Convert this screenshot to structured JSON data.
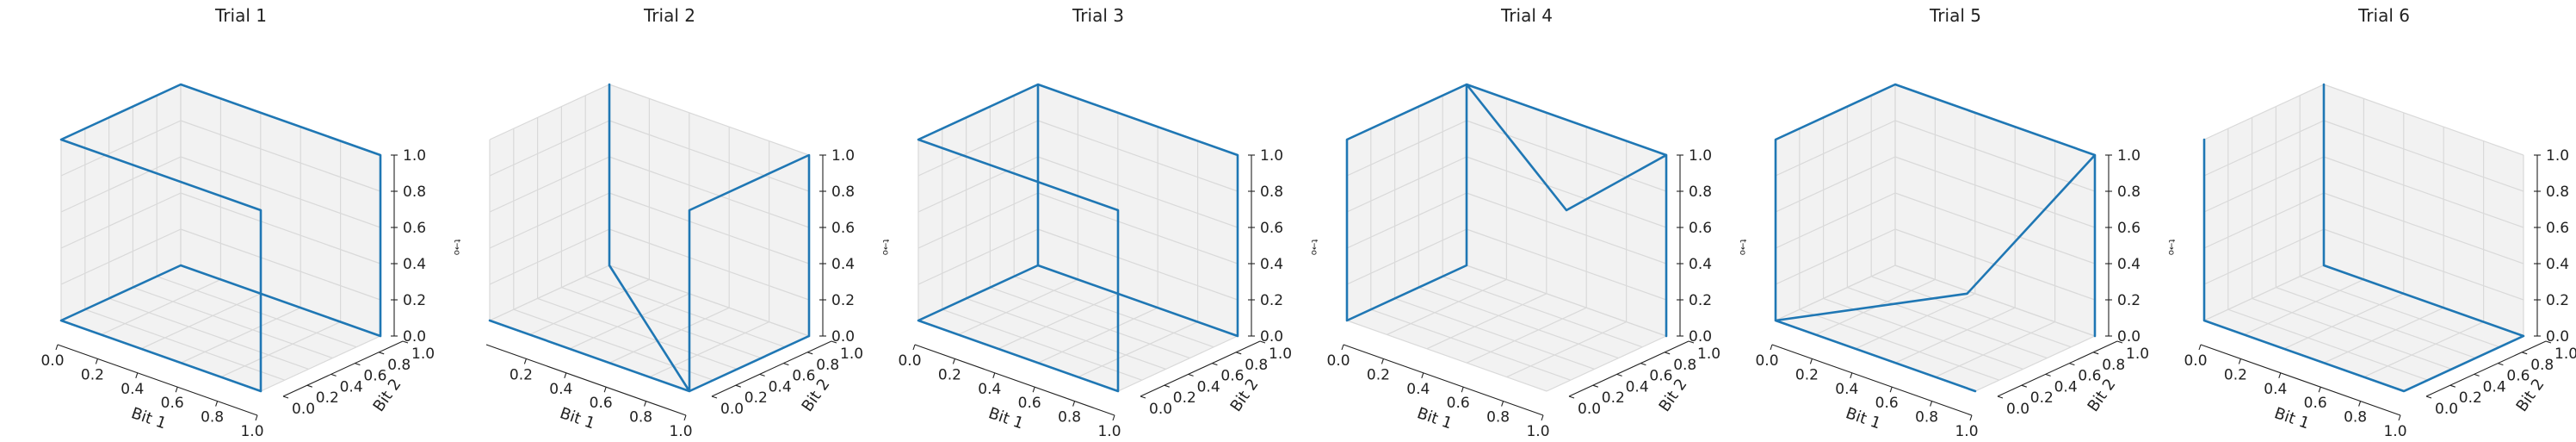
{
  "figure": {
    "line_color": "#1f77b4",
    "pane_color": "#f2f2f2",
    "grid_color": "#d9d9d9"
  },
  "chart_data": [
    {
      "type": "line3d",
      "title": "Trial 1",
      "xlabel": "Bit 1",
      "ylabel": "Bit 2",
      "zlabel": "t→o",
      "xlim": [
        0,
        1
      ],
      "ylim": [
        0,
        1
      ],
      "zlim": [
        0,
        1
      ],
      "xticks": [
        "0.0",
        "0.2",
        "0.4",
        "0.6",
        "0.8",
        "1.0"
      ],
      "yticks": [
        "0.0",
        "0.2",
        "0.4",
        "0.6",
        "0.8",
        "1.0"
      ],
      "zticks": [
        "0.0",
        "0.2",
        "0.4",
        "0.6",
        "0.8",
        "1.0"
      ],
      "points": [
        [
          1,
          1,
          0
        ],
        [
          1,
          1,
          1
        ],
        [
          0,
          1,
          1
        ],
        [
          0,
          0,
          1
        ],
        [
          1,
          0,
          1
        ],
        [
          1,
          0,
          0
        ],
        [
          0,
          0,
          0
        ],
        [
          0,
          1,
          0
        ],
        [
          1,
          1,
          0
        ]
      ]
    },
    {
      "type": "line3d",
      "title": "Trial 2",
      "xlabel": "Bit 1",
      "ylabel": "Bit 2",
      "zlabel": "t→o",
      "xlim": [
        0,
        1
      ],
      "ylim": [
        0,
        1
      ],
      "zlim": [
        0,
        1
      ],
      "xticks": [
        "0.2",
        "0.4",
        "0.6",
        "0.8",
        "1.0"
      ],
      "yticks": [
        "0.0",
        "0.2",
        "0.4",
        "0.6",
        "0.8",
        "1.0"
      ],
      "zticks": [
        "0.0",
        "0.2",
        "0.4",
        "0.6",
        "0.8",
        "1.0"
      ],
      "points": [
        [
          1,
          1,
          0
        ],
        [
          1,
          1,
          1
        ],
        [
          1,
          0,
          1
        ],
        [
          1,
          0,
          0
        ],
        [
          0,
          1,
          0
        ],
        [
          0,
          1,
          1
        ],
        [
          0,
          1,
          0
        ],
        [
          1,
          0,
          0
        ],
        [
          0,
          0,
          0
        ],
        [
          1,
          0,
          0
        ],
        [
          1,
          1,
          0
        ]
      ]
    },
    {
      "type": "line3d",
      "title": "Trial 3",
      "xlabel": "Bit 1",
      "ylabel": "Bit 2",
      "zlabel": "t→o",
      "xlim": [
        0,
        1
      ],
      "ylim": [
        0,
        1
      ],
      "zlim": [
        0,
        1
      ],
      "xticks": [
        "0.0",
        "0.2",
        "0.4",
        "0.6",
        "0.8",
        "1.0"
      ],
      "yticks": [
        "0.0",
        "0.2",
        "0.4",
        "0.6",
        "0.8",
        "1.0"
      ],
      "zticks": [
        "0.0",
        "0.2",
        "0.4",
        "0.6",
        "0.8",
        "1.0"
      ],
      "points": [
        [
          1,
          1,
          0
        ],
        [
          1,
          1,
          1
        ],
        [
          0,
          1,
          1
        ],
        [
          0,
          0,
          1
        ],
        [
          1,
          0,
          1
        ],
        [
          1,
          0,
          0
        ],
        [
          0,
          0,
          0
        ],
        [
          0,
          1,
          0
        ],
        [
          0,
          1,
          1
        ],
        [
          0,
          1,
          0
        ],
        [
          1,
          1,
          0
        ]
      ]
    },
    {
      "type": "line3d",
      "title": "Trial 4",
      "xlabel": "Bit 1",
      "ylabel": "Bit 2",
      "zlabel": "t→o",
      "xlim": [
        0,
        1
      ],
      "ylim": [
        0,
        1
      ],
      "zlim": [
        0,
        1
      ],
      "xticks": [
        "0.0",
        "0.2",
        "0.4",
        "0.6",
        "0.8",
        "1.0"
      ],
      "yticks": [
        "0.0",
        "0.2",
        "0.4",
        "0.6",
        "0.8",
        "1.0"
      ],
      "zticks": [
        "0.0",
        "0.2",
        "0.4",
        "0.6",
        "0.8",
        "1.0"
      ],
      "points": [
        [
          1,
          1,
          0
        ],
        [
          1,
          1,
          1
        ],
        [
          0,
          1,
          1
        ],
        [
          0,
          0,
          1
        ],
        [
          0,
          0,
          0
        ],
        [
          0,
          1,
          0
        ],
        [
          0,
          1,
          1
        ],
        [
          0.5,
          1,
          0.5
        ],
        [
          1,
          1,
          1
        ]
      ]
    },
    {
      "type": "line3d",
      "title": "Trial 5",
      "xlabel": "Bit 1",
      "ylabel": "Bit 2",
      "zlabel": "t→o",
      "xlim": [
        0,
        1
      ],
      "ylim": [
        0,
        1
      ],
      "zlim": [
        0,
        1
      ],
      "xticks": [
        "0.0",
        "0.2",
        "0.4",
        "0.6",
        "0.8",
        "1.0"
      ],
      "yticks": [
        "0.0",
        "0.2",
        "0.4",
        "0.6",
        "0.8",
        "1.0"
      ],
      "zticks": [
        "0.0",
        "0.2",
        "0.4",
        "0.6",
        "0.8",
        "1.0"
      ],
      "points": [
        [
          1,
          1,
          0
        ],
        [
          1,
          1,
          1
        ],
        [
          0,
          1,
          1
        ],
        [
          0,
          0,
          1
        ],
        [
          0,
          0,
          0
        ],
        [
          1,
          0,
          0
        ],
        [
          0,
          0,
          0
        ],
        [
          0.6,
          0.6,
          0.2
        ],
        [
          1,
          1,
          1
        ]
      ]
    },
    {
      "type": "line3d",
      "title": "Trial 6",
      "xlabel": "Bit 1",
      "ylabel": "Bit 2",
      "zlabel": "t→o",
      "xlim": [
        0,
        1
      ],
      "ylim": [
        0,
        1
      ],
      "zlim": [
        0,
        1
      ],
      "xticks": [
        "0.0",
        "0.2",
        "0.4",
        "0.6",
        "0.8",
        "1.0"
      ],
      "yticks": [
        "0.0",
        "0.2",
        "0.4",
        "0.6",
        "0.8",
        "1.0"
      ],
      "zticks": [
        "0.0",
        "0.2",
        "0.4",
        "0.6",
        "0.8",
        "1.0"
      ],
      "points": [
        [
          0,
          0,
          1
        ],
        [
          0,
          0,
          0.55
        ],
        [
          0,
          0,
          0
        ],
        [
          1,
          0,
          0
        ],
        [
          1,
          1,
          0
        ],
        [
          0,
          1,
          0
        ],
        [
          0,
          1,
          1
        ]
      ]
    }
  ]
}
